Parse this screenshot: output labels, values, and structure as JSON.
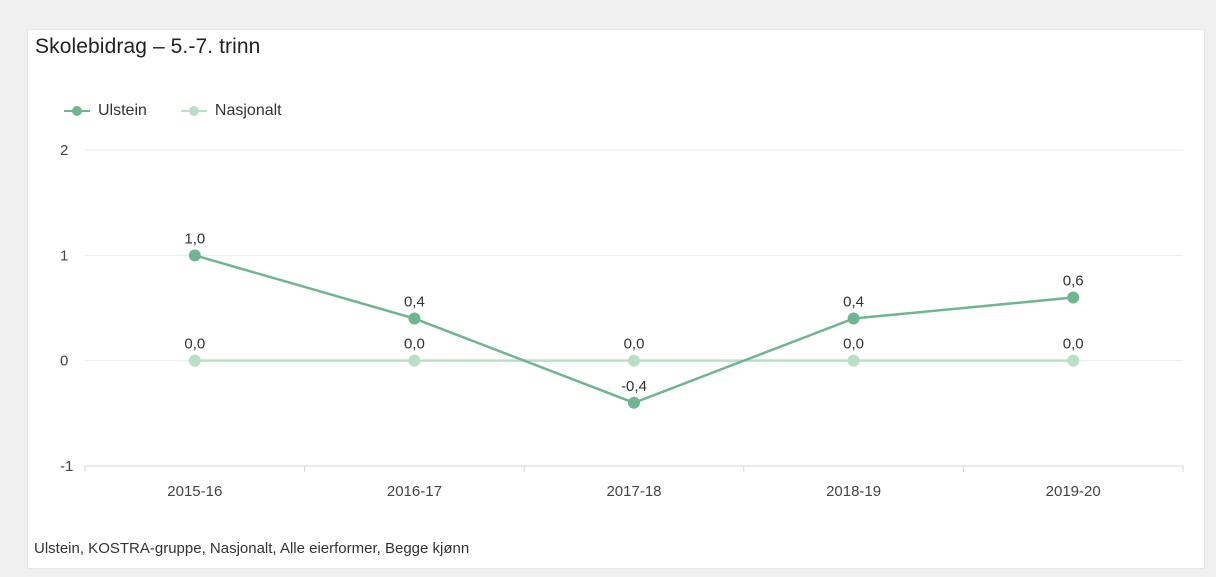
{
  "card": {
    "title": "Skolebidrag – 5.-7. trinn",
    "footnote": "Ulstein, KOSTRA-gruppe, Nasjonalt, Alle eierformer, Begge kjønn"
  },
  "legend": [
    {
      "name": "Ulstein",
      "color": "#6fb690"
    },
    {
      "name": "Nasjonalt",
      "color": "#b8e0c6"
    }
  ],
  "chart_data": {
    "type": "line",
    "title": "Skolebidrag – 5.-7. trinn",
    "categories": [
      "2015-16",
      "2016-17",
      "2017-18",
      "2018-19",
      "2019-20"
    ],
    "ylim": [
      -1,
      2
    ],
    "yticks": [
      2,
      1,
      0,
      -1
    ],
    "grid": true,
    "legend_position": "top-left",
    "series": [
      {
        "name": "Ulstein",
        "values": [
          1.0,
          0.4,
          -0.4,
          0.4,
          0.6
        ],
        "labels": [
          "1,0",
          "0,4",
          "-0,4",
          "0,4",
          "0,6"
        ],
        "color": "#6fb690",
        "label_position": [
          "above",
          "above",
          "above",
          "above",
          "above"
        ]
      },
      {
        "name": "Nasjonalt",
        "values": [
          0.0,
          0.0,
          0.0,
          0.0,
          0.0
        ],
        "labels": [
          "0,0",
          "0,0",
          "0,0",
          "0,0",
          "0,0"
        ],
        "color": "#b8e0c6",
        "label_position": [
          "above",
          "above",
          "above",
          "above",
          "above"
        ]
      }
    ]
  }
}
